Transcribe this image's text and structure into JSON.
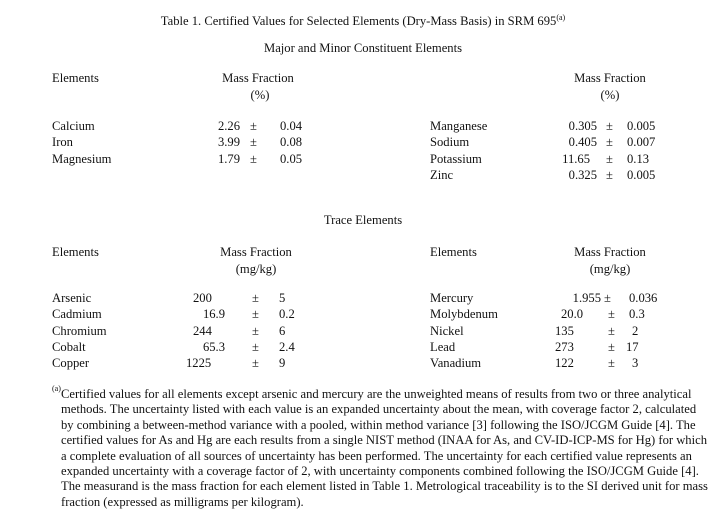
{
  "title": "Table 1.  Certified Values for Selected Elements (Dry-Mass Basis) in SRM 695",
  "title_note": "(a)",
  "major": {
    "heading": "Major and Minor Constituent Elements",
    "col_elements": "Elements",
    "col_mass": "Mass Fraction",
    "unit": "(%)",
    "pm": "±",
    "left": [
      {
        "element": "Calcium",
        "value": "2.26",
        "unc": "0.04"
      },
      {
        "element": "Iron",
        "value": "3.99",
        "unc": "0.08"
      },
      {
        "element": "Magnesium",
        "value": "1.79",
        "unc": "0.05"
      }
    ],
    "right": [
      {
        "element": "Manganese",
        "value": "0.305",
        "unc": "0.005"
      },
      {
        "element": "Sodium",
        "value": "0.405",
        "unc": "0.007"
      },
      {
        "element": "Potassium",
        "value": "11.65",
        "unc": "0.13"
      },
      {
        "element": "Zinc",
        "value": "0.325",
        "unc": "0.005"
      }
    ]
  },
  "trace": {
    "heading": "Trace Elements",
    "col_elements": "Elements",
    "col_mass": "Mass Fraction",
    "unit": "(mg/kg)",
    "pm": "±",
    "left": [
      {
        "element": "Arsenic",
        "value": "200",
        "unc": "5"
      },
      {
        "element": "Cadmium",
        "value": "16.9",
        "unc": "0.2"
      },
      {
        "element": "Chromium",
        "value": "244",
        "unc": "6"
      },
      {
        "element": "Cobalt",
        "value": "65.3",
        "unc": "2.4"
      },
      {
        "element": "Copper",
        "value": "1225",
        "unc": "9"
      }
    ],
    "right": [
      {
        "element": "Mercury",
        "value": "1.955",
        "unc": "0.036"
      },
      {
        "element": "Molybdenum",
        "value": "20.0",
        "unc": "0.3"
      },
      {
        "element": "Nickel",
        "value": "135",
        "unc": "2"
      },
      {
        "element": "Lead",
        "value": "273",
        "unc": "17"
      },
      {
        "element": "Vanadium",
        "value": "122",
        "unc": "3"
      }
    ]
  },
  "footnote": {
    "mark": "(a)",
    "lines": [
      "Certified values for all elements except arsenic and mercury are the unweighted means of results from two or three analytical",
      "methods.  The uncertainty listed with each value is an expanded uncertainty about the mean, with coverage factor 2, calculated",
      "by combining a between-method variance with a pooled, within method variance [3] following the ISO/JCGM Guide [4].  The",
      "certified values for As and Hg are each results from a single NIST method (INAA for As, and CV-ID-ICP-MS for Hg) for which",
      "a complete evaluation of all sources of uncertainty has been performed.  The uncertainty for each certified value represents an",
      "expanded uncertainty with a coverage factor of 2, with uncertainty components combined following the ISO/JCGM Guide [4].",
      "The measurand is the mass fraction for each element listed in Table 1. Metrological traceability is to the SI derived unit for mass",
      "fraction (expressed as milligrams per kilogram)."
    ]
  }
}
